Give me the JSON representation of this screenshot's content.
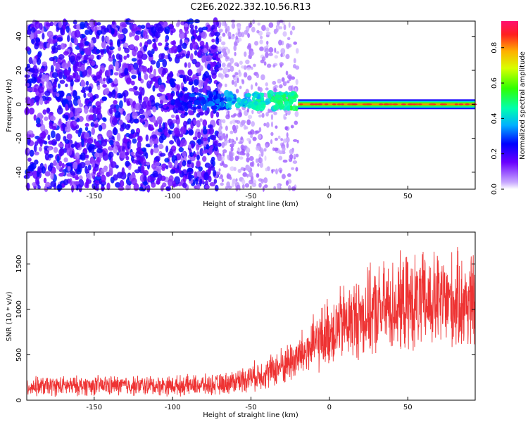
{
  "title": "C2E6.2022.332.10.56.R13",
  "colorbar": {
    "label": "Normalized spectral amplitude",
    "ticks": [
      "0.0",
      "0.2",
      "0.4",
      "0.6",
      "0.8"
    ],
    "range": [
      0,
      0.95
    ]
  },
  "chart_data": [
    {
      "type": "heatmap",
      "xlabel": "Height of straight line (km)",
      "ylabel": "Frequency (Hz)",
      "xlim": [
        -193,
        93
      ],
      "ylim": [
        -50,
        49
      ],
      "x_ticks": [
        "-150",
        "-100",
        "-50",
        "0",
        "50"
      ],
      "y_ticks": [
        "-40",
        "-20",
        "0",
        "20",
        "40"
      ],
      "features": [
        {
          "x_range": [
            -193,
            -70
          ],
          "freq_range": [
            -50,
            49
          ],
          "amplitude": 0.2
        },
        {
          "x_range": [
            -70,
            -20
          ],
          "freq_range": [
            -50,
            49
          ],
          "amplitude": 0.08
        },
        {
          "x_range": [
            -105,
            -20
          ],
          "freq_center": 2,
          "amplitude": 0.35
        },
        {
          "x_range": [
            -20,
            93
          ],
          "freq_center": 0,
          "amplitude": 0.9
        }
      ]
    },
    {
      "type": "line",
      "xlabel": "Height of straight line (km)",
      "ylabel": "SNR (10 * v/v)",
      "xlim": [
        -193,
        93
      ],
      "ylim": [
        0,
        1850
      ],
      "x_ticks": [
        "-150",
        "-100",
        "-50",
        "0",
        "50"
      ],
      "y_ticks": [
        "0",
        "500",
        "1000",
        "1500"
      ],
      "series": [
        {
          "color": "#ee3333",
          "x": [
            -193,
            -150,
            -100,
            -70,
            -55,
            -40,
            -30,
            -20,
            -10,
            0,
            10,
            20,
            30,
            40,
            50,
            60,
            70,
            80,
            93
          ],
          "y": [
            150,
            160,
            160,
            170,
            230,
            300,
            380,
            470,
            600,
            760,
            850,
            920,
            980,
            1030,
            1060,
            1080,
            1090,
            1080,
            1080
          ]
        }
      ]
    }
  ]
}
